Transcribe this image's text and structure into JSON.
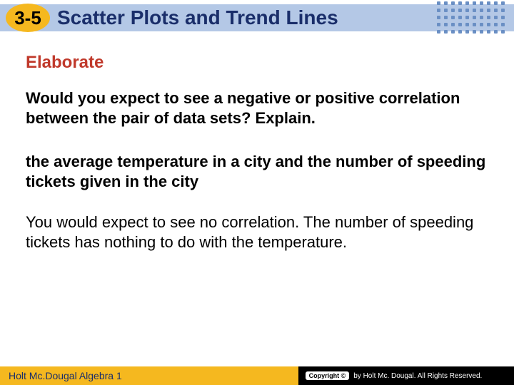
{
  "header": {
    "lesson_number": "3-5",
    "title": "Scatter Plots and Trend Lines",
    "bar_color": "#b4c8e6",
    "badge_color": "#f5b81f",
    "title_color": "#1a2e6a"
  },
  "content": {
    "section_label": "Elaborate",
    "section_color": "#c0392b",
    "question": "Would you expect to see a negative or positive correlation between the pair of data sets? Explain.",
    "sub_prompt": "the average temperature in a city and the number of speeding tickets given in the city",
    "answer": "You would expect to see no correlation. The number of speeding tickets has nothing to do with the temperature."
  },
  "footer": {
    "book": "Holt Mc.Dougal Algebra 1",
    "copyright_label": "Copyright ©",
    "copyright_text": "by Holt Mc. Dougal. All Rights Reserved.",
    "left_bg": "#f5b81f",
    "right_bg": "#000000"
  }
}
